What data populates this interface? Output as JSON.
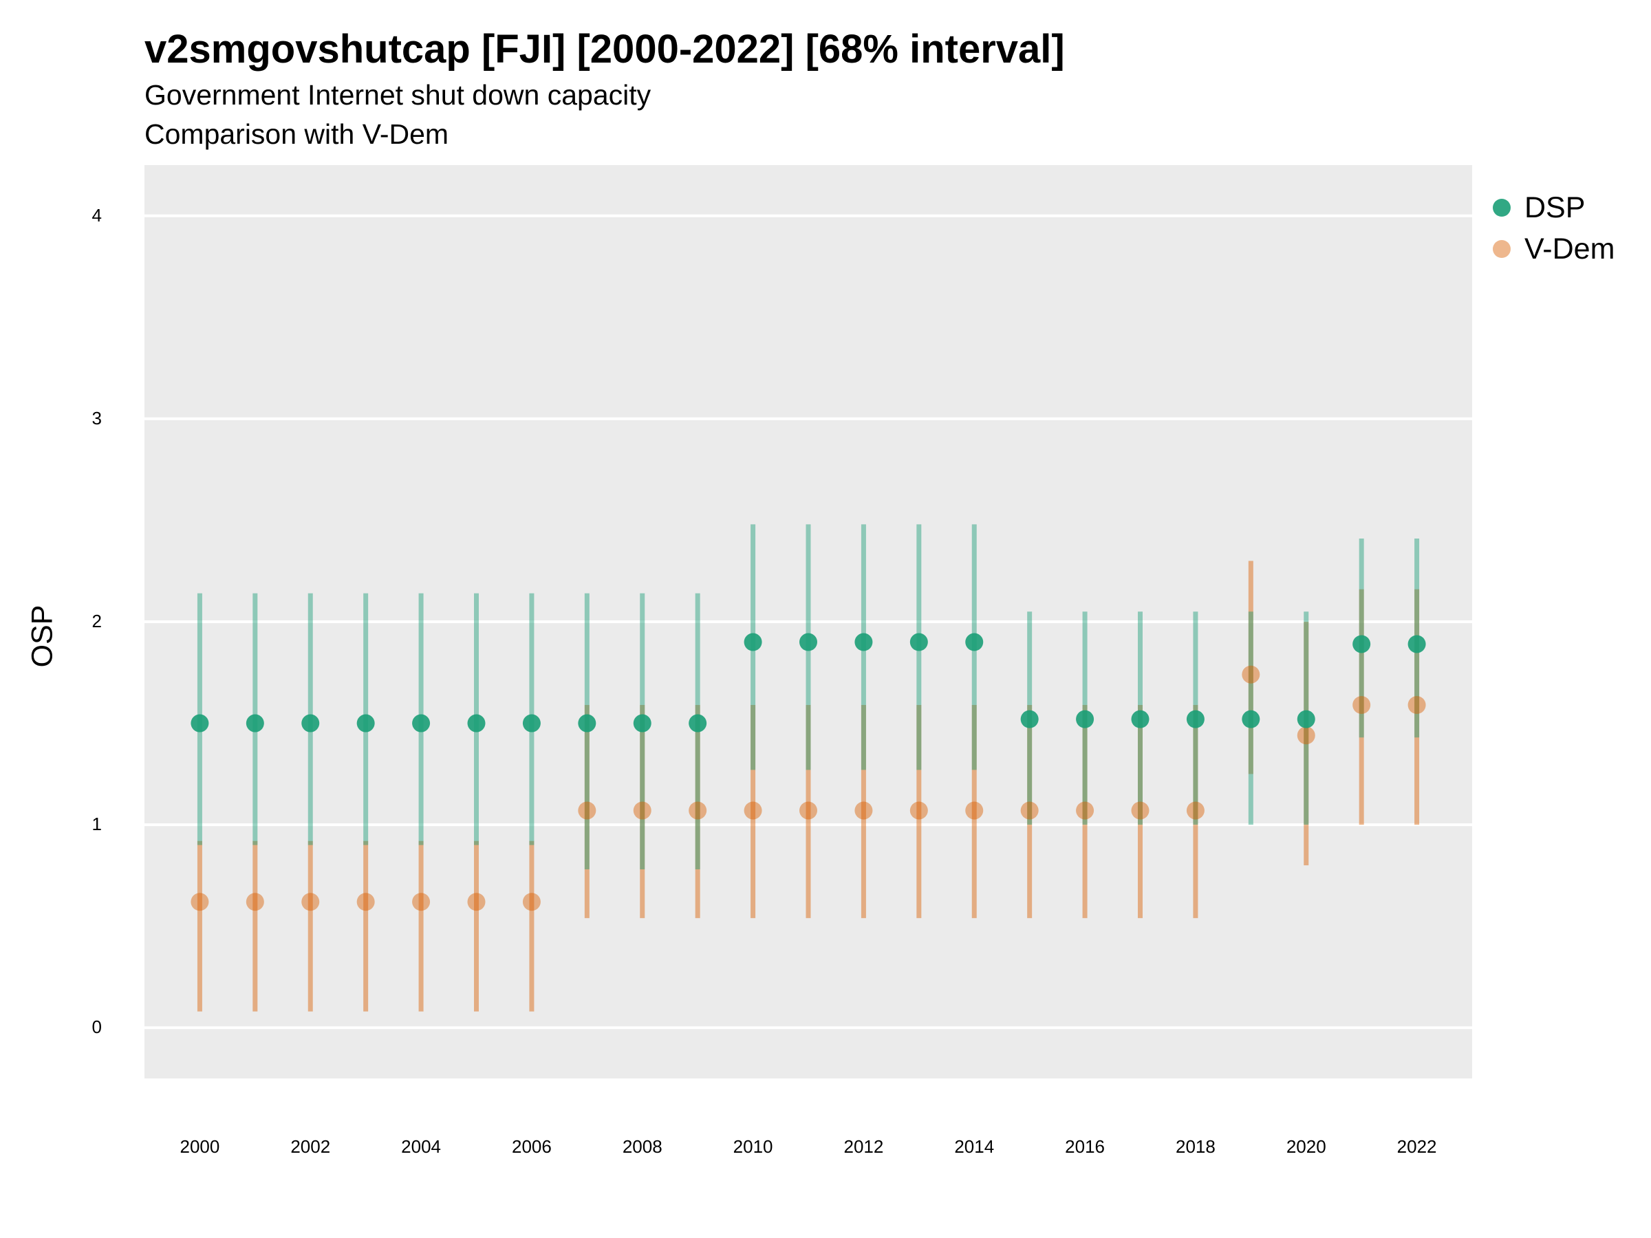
{
  "title": "v2smgovshutcap [FJI] [2000-2022] [68% interval]",
  "subtitle": "Government Internet shut down capacity",
  "subtitle2": "Comparison with V-Dem",
  "chart_data": {
    "type": "scatter",
    "title": "v2smgovshutcap [FJI] [2000-2022] [68% interval]",
    "subtitle": "Government Internet shut down capacity",
    "xlabel": "",
    "ylabel": "OSP",
    "xlim": [
      1999.0,
      2023.0
    ],
    "ylim": [
      -0.25,
      4.25
    ],
    "yticks": [
      0,
      1,
      2,
      3,
      4
    ],
    "xticks": [
      2000,
      2002,
      2004,
      2006,
      2008,
      2010,
      2012,
      2014,
      2016,
      2018,
      2020,
      2022
    ],
    "grid": true,
    "legend_position": "right",
    "x": [
      2000,
      2001,
      2002,
      2003,
      2004,
      2005,
      2006,
      2007,
      2008,
      2009,
      2010,
      2011,
      2012,
      2013,
      2014,
      2015,
      2016,
      2017,
      2018,
      2019,
      2020,
      2021,
      2022
    ],
    "series": [
      {
        "name": "DSP",
        "color": "#1b9e77",
        "values": [
          1.5,
          1.5,
          1.5,
          1.5,
          1.5,
          1.5,
          1.5,
          1.5,
          1.5,
          1.5,
          1.9,
          1.9,
          1.9,
          1.9,
          1.9,
          1.52,
          1.52,
          1.52,
          1.52,
          1.52,
          1.52,
          1.89,
          1.89
        ],
        "lower": [
          0.9,
          0.9,
          0.9,
          0.9,
          0.9,
          0.9,
          0.9,
          0.78,
          0.78,
          0.78,
          1.27,
          1.27,
          1.27,
          1.27,
          1.27,
          1.0,
          1.0,
          1.0,
          1.0,
          1.0,
          1.0,
          1.43,
          1.43
        ],
        "upper": [
          2.14,
          2.14,
          2.14,
          2.14,
          2.14,
          2.14,
          2.14,
          2.14,
          2.14,
          2.14,
          2.48,
          2.48,
          2.48,
          2.48,
          2.48,
          2.05,
          2.05,
          2.05,
          2.05,
          2.05,
          2.05,
          2.41,
          2.41
        ]
      },
      {
        "name": "V-Dem",
        "color": "#d95f02",
        "values": [
          0.62,
          0.62,
          0.62,
          0.62,
          0.62,
          0.62,
          0.62,
          1.07,
          1.07,
          1.07,
          1.07,
          1.07,
          1.07,
          1.07,
          1.07,
          1.07,
          1.07,
          1.07,
          1.07,
          1.74,
          1.44,
          1.59,
          1.59
        ],
        "lower": [
          0.08,
          0.08,
          0.08,
          0.08,
          0.08,
          0.08,
          0.08,
          0.54,
          0.54,
          0.54,
          0.54,
          0.54,
          0.54,
          0.54,
          0.54,
          0.54,
          0.54,
          0.54,
          0.54,
          1.25,
          0.8,
          1.0,
          1.0
        ],
        "upper": [
          0.92,
          0.92,
          0.92,
          0.92,
          0.92,
          0.92,
          0.92,
          1.59,
          1.59,
          1.59,
          1.59,
          1.59,
          1.59,
          1.59,
          1.59,
          1.59,
          1.59,
          1.59,
          1.59,
          2.3,
          2.0,
          2.16,
          2.16
        ]
      }
    ]
  }
}
